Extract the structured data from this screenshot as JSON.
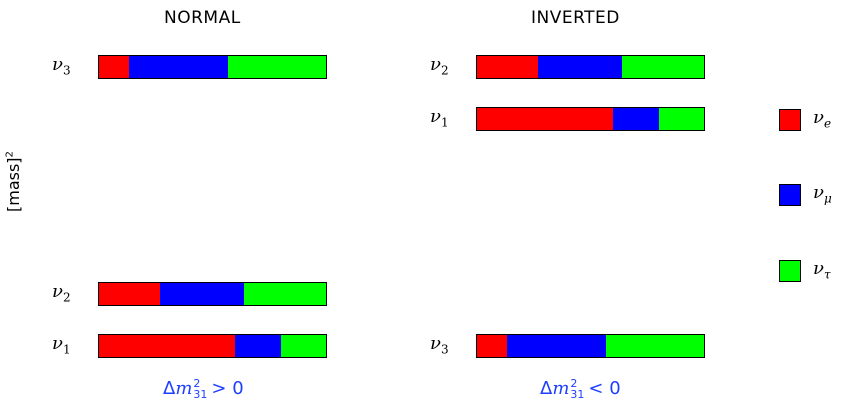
{
  "normal": {
    "title": "NORMAL",
    "condition": {
      "delta": "Δ",
      "m": "m",
      "sup": "2",
      "sub": "31",
      "rel": "> 0"
    },
    "states": [
      {
        "greek": "ν",
        "idx": "3",
        "fractions": {
          "e": 0.13,
          "mu": 0.44,
          "tau": 0.43
        }
      },
      {
        "greek": "ν",
        "idx": "2",
        "fractions": {
          "e": 0.27,
          "mu": 0.37,
          "tau": 0.36
        }
      },
      {
        "greek": "ν",
        "idx": "1",
        "fractions": {
          "e": 0.6,
          "mu": 0.2,
          "tau": 0.2
        }
      }
    ]
  },
  "inverted": {
    "title": "INVERTED",
    "condition": {
      "delta": "Δ",
      "m": "m",
      "sup": "2",
      "sub": "31",
      "rel": "< 0"
    },
    "states": [
      {
        "greek": "ν",
        "idx": "2",
        "fractions": {
          "e": 0.27,
          "mu": 0.37,
          "tau": 0.36
        }
      },
      {
        "greek": "ν",
        "idx": "1",
        "fractions": {
          "e": 0.6,
          "mu": 0.2,
          "tau": 0.2
        }
      },
      {
        "greek": "ν",
        "idx": "3",
        "fractions": {
          "e": 0.13,
          "mu": 0.44,
          "tau": 0.43
        }
      }
    ]
  },
  "axis": {
    "label": "[mass]",
    "sup": "2"
  },
  "legend": [
    {
      "key": "e",
      "greek": "ν",
      "sub": "e",
      "color": "#ff0000"
    },
    {
      "key": "mu",
      "greek": "ν",
      "sub": "μ",
      "color": "#0000ff"
    },
    {
      "key": "tau",
      "greek": "ν",
      "sub": "τ",
      "color": "#00ff00"
    }
  ]
}
